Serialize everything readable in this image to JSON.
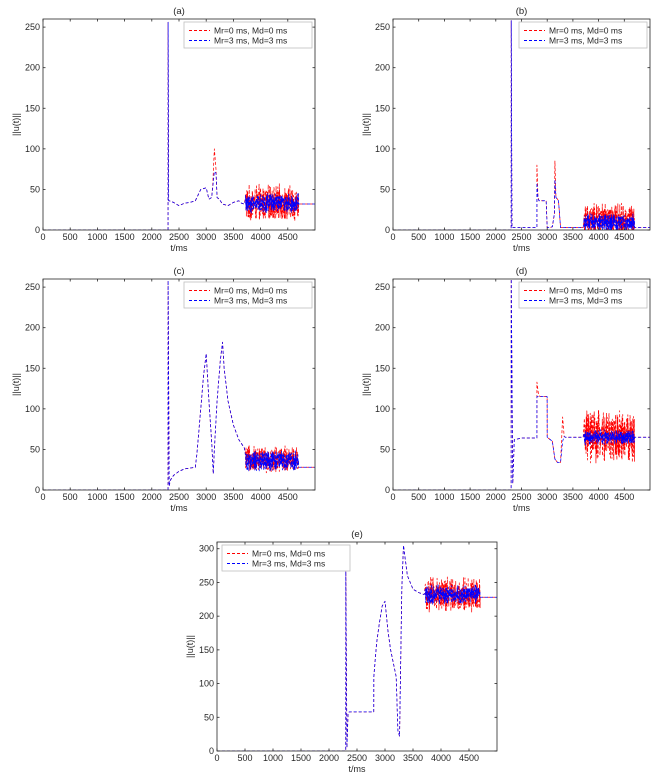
{
  "figure": {
    "panels": [
      "a",
      "b",
      "c",
      "d",
      "e"
    ],
    "colors": {
      "series_1": "#ff0000",
      "series_2": "#0000ff",
      "axes": "#262626",
      "legend_edge": "#bfbfbf"
    }
  },
  "chart_data": [
    {
      "id": "a",
      "type": "line",
      "title": "(a)",
      "xlabel": "t/ms",
      "ylabel": "||u(t)||",
      "xlim": [
        0,
        5000
      ],
      "ylim": [
        0,
        260
      ],
      "xticks": [
        0,
        500,
        1000,
        1500,
        2000,
        2500,
        3000,
        3500,
        4000,
        4500
      ],
      "yticks": [
        0,
        50,
        100,
        150,
        200,
        250
      ],
      "legend": {
        "location": "top-right",
        "entries": [
          "Mr=0 ms, Md=0 ms",
          "Mr=3 ms, Md=3 ms"
        ]
      },
      "series": [
        {
          "name": "Mr=0 ms, Md=0 ms",
          "color": "#ff0000",
          "style": "dashed",
          "x": [
            0,
            2299,
            2300,
            2310,
            2320,
            2400,
            2500,
            2600,
            2700,
            2800,
            2900,
            3000,
            3050,
            3100,
            3120,
            3150,
            3180,
            3200,
            3240,
            3260,
            3300,
            3400,
            3500,
            3600,
            3650,
            3700
          ],
          "y": [
            0,
            0,
            256,
            36,
            36,
            34,
            30,
            33,
            34,
            36,
            50,
            52,
            38,
            40,
            55,
            100,
            75,
            40,
            38,
            36,
            32,
            30,
            34,
            36,
            33,
            32
          ],
          "noise": {
            "from": 3720,
            "to": 4700,
            "mean": 33,
            "amp": 24
          },
          "tail": {
            "x": [
              4700,
              5000
            ],
            "y": [
              32,
              32
            ]
          }
        },
        {
          "name": "Mr=3 ms, Md=3 ms",
          "color": "#0000ff",
          "style": "dashed",
          "x": [
            0,
            2299,
            2300,
            2310,
            2320,
            2400,
            2500,
            2600,
            2700,
            2800,
            2900,
            3000,
            3050,
            3100,
            3120,
            3150,
            3180,
            3200,
            3240,
            3260,
            3300,
            3400,
            3500,
            3600,
            3650,
            3700
          ],
          "y": [
            0,
            0,
            256,
            36,
            36,
            34,
            30,
            33,
            34,
            36,
            50,
            52,
            38,
            40,
            52,
            72,
            70,
            40,
            38,
            36,
            32,
            30,
            34,
            36,
            33,
            32
          ],
          "noise": {
            "from": 3720,
            "to": 4700,
            "mean": 33,
            "amp": 13
          },
          "tail": {
            "x": [
              4700,
              5000
            ],
            "y": [
              32,
              32
            ]
          }
        }
      ]
    },
    {
      "id": "b",
      "type": "line",
      "title": "(b)",
      "xlabel": "t/ms",
      "ylabel": "||u(t)||",
      "xlim": [
        0,
        5000
      ],
      "ylim": [
        0,
        260
      ],
      "xticks": [
        0,
        500,
        1000,
        1500,
        2000,
        2500,
        3000,
        3500,
        4000,
        4500
      ],
      "yticks": [
        0,
        50,
        100,
        150,
        200,
        250
      ],
      "legend": {
        "location": "top-right",
        "entries": [
          "Mr=0 ms, Md=0 ms",
          "Mr=3 ms, Md=3 ms"
        ]
      },
      "series": [
        {
          "name": "Mr=0 ms, Md=0 ms",
          "color": "#ff0000",
          "style": "dashed",
          "x": [
            0,
            2299,
            2300,
            2315,
            2330,
            2500,
            2700,
            2799,
            2800,
            2820,
            2840,
            2900,
            2980,
            3000,
            3050,
            3100,
            3140,
            3150,
            3170,
            3200,
            3220,
            3260,
            3300,
            3400,
            3500,
            3600,
            3700
          ],
          "y": [
            0,
            0,
            258,
            3,
            3,
            3,
            3,
            3,
            80,
            40,
            36,
            36,
            36,
            3,
            3,
            4,
            20,
            85,
            40,
            38,
            36,
            3,
            3,
            3,
            3,
            3,
            3
          ],
          "noise": {
            "from": 3720,
            "to": 4700,
            "mean": 12,
            "amp": 22
          },
          "tail": {
            "x": [
              4700,
              5000
            ],
            "y": [
              3,
              3
            ]
          }
        },
        {
          "name": "Mr=3 ms, Md=3 ms",
          "color": "#0000ff",
          "style": "dashed",
          "x": [
            0,
            2299,
            2300,
            2315,
            2330,
            2500,
            2700,
            2799,
            2800,
            2820,
            2840,
            2900,
            2980,
            3000,
            3050,
            3100,
            3140,
            3150,
            3170,
            3200,
            3220,
            3260,
            3300,
            3400,
            3500,
            3600,
            3700
          ],
          "y": [
            0,
            0,
            258,
            3,
            3,
            3,
            3,
            3,
            58,
            40,
            36,
            36,
            36,
            3,
            3,
            4,
            20,
            62,
            40,
            38,
            36,
            3,
            3,
            3,
            3,
            3,
            3
          ],
          "noise": {
            "from": 3720,
            "to": 4700,
            "mean": 9,
            "amp": 12
          },
          "tail": {
            "x": [
              4700,
              5000
            ],
            "y": [
              3,
              3
            ]
          }
        }
      ]
    },
    {
      "id": "c",
      "type": "line",
      "title": "(c)",
      "xlabel": "t/ms",
      "ylabel": "||u(t)||",
      "xlim": [
        0,
        5000
      ],
      "ylim": [
        0,
        260
      ],
      "xticks": [
        0,
        500,
        1000,
        1500,
        2000,
        2500,
        3000,
        3500,
        4000,
        4500
      ],
      "yticks": [
        0,
        50,
        100,
        150,
        200,
        250
      ],
      "legend": {
        "location": "top-right",
        "entries": [
          "Mr=0 ms, Md=0 ms",
          "Mr=3 ms, Md=3 ms"
        ]
      },
      "series": [
        {
          "name": "Mr=0 ms, Md=0 ms",
          "color": "#ff0000",
          "style": "dashed",
          "x": [
            0,
            2299,
            2300,
            2320,
            2340,
            2400,
            2500,
            2600,
            2700,
            2800,
            2830,
            2900,
            2950,
            3000,
            3050,
            3100,
            3130,
            3150,
            3200,
            3260,
            3300,
            3330,
            3400,
            3500,
            3600,
            3700
          ],
          "y": [
            0,
            0,
            258,
            5,
            12,
            18,
            23,
            26,
            27,
            28,
            45,
            100,
            140,
            168,
            110,
            60,
            20,
            50,
            110,
            160,
            182,
            150,
            110,
            80,
            62,
            52
          ],
          "noise": {
            "from": 3720,
            "to": 4700,
            "mean": 38,
            "amp": 18
          },
          "tail": {
            "x": [
              4700,
              5000
            ],
            "y": [
              28,
              28
            ]
          }
        },
        {
          "name": "Mr=3 ms, Md=3 ms",
          "color": "#0000ff",
          "style": "dashed",
          "x": [
            0,
            2299,
            2300,
            2320,
            2340,
            2400,
            2500,
            2600,
            2700,
            2800,
            2830,
            2900,
            2950,
            3000,
            3050,
            3100,
            3130,
            3150,
            3200,
            3260,
            3300,
            3330,
            3400,
            3500,
            3600,
            3700
          ],
          "y": [
            0,
            0,
            258,
            5,
            12,
            18,
            23,
            26,
            27,
            28,
            45,
            100,
            140,
            168,
            110,
            60,
            20,
            50,
            110,
            160,
            182,
            150,
            110,
            80,
            62,
            52
          ],
          "noise": {
            "from": 3720,
            "to": 4700,
            "mean": 36,
            "amp": 14
          },
          "tail": {
            "x": [
              4700,
              5000
            ],
            "y": [
              28,
              28
            ]
          }
        }
      ]
    },
    {
      "id": "d",
      "type": "line",
      "title": "(d)",
      "xlabel": "t/ms",
      "ylabel": "||u(t)||",
      "xlim": [
        0,
        5000
      ],
      "ylim": [
        0,
        260
      ],
      "xticks": [
        0,
        500,
        1000,
        1500,
        2000,
        2500,
        3000,
        3500,
        4000,
        4500
      ],
      "yticks": [
        0,
        50,
        100,
        150,
        200,
        250
      ],
      "legend": {
        "location": "top-right",
        "entries": [
          "Mr=0 ms, Md=0 ms",
          "Mr=3 ms, Md=3 ms"
        ]
      },
      "series": [
        {
          "name": "Mr=0 ms, Md=0 ms",
          "color": "#ff0000",
          "style": "dashed",
          "x": [
            0,
            2299,
            2300,
            2330,
            2360,
            2500,
            2700,
            2799,
            2800,
            2830,
            2860,
            2950,
            2999,
            3000,
            3100,
            3150,
            3200,
            3260,
            3300,
            3330,
            3350,
            3400,
            3500,
            3600,
            3700
          ],
          "y": [
            0,
            0,
            266,
            8,
            62,
            64,
            64,
            64,
            133,
            118,
            115,
            115,
            115,
            65,
            60,
            38,
            34,
            34,
            90,
            66,
            65,
            65,
            65,
            65,
            65
          ],
          "noise": {
            "from": 3720,
            "to": 4700,
            "mean": 65,
            "amp": 36
          },
          "tail": {
            "x": [
              4700,
              5000
            ],
            "y": [
              65,
              65
            ]
          }
        },
        {
          "name": "Mr=3 ms, Md=3 ms",
          "color": "#0000ff",
          "style": "dashed",
          "x": [
            0,
            2299,
            2300,
            2330,
            2360,
            2500,
            2700,
            2799,
            2800,
            2830,
            2860,
            2950,
            2999,
            3000,
            3100,
            3150,
            3200,
            3260,
            3300,
            3330,
            3350,
            3400,
            3500,
            3600,
            3700
          ],
          "y": [
            0,
            0,
            266,
            8,
            62,
            64,
            64,
            64,
            115,
            115,
            115,
            115,
            115,
            65,
            60,
            38,
            34,
            34,
            60,
            66,
            65,
            65,
            65,
            65,
            65
          ],
          "noise": {
            "from": 3720,
            "to": 4700,
            "mean": 65,
            "amp": 10
          },
          "tail": {
            "x": [
              4700,
              5000
            ],
            "y": [
              65,
              65
            ]
          }
        }
      ]
    },
    {
      "id": "e",
      "type": "line",
      "title": "(e)",
      "xlabel": "t/ms",
      "ylabel": "||u(t)||",
      "xlim": [
        0,
        5000
      ],
      "ylim": [
        0,
        310
      ],
      "xticks": [
        0,
        500,
        1000,
        1500,
        2000,
        2500,
        3000,
        3500,
        4000,
        4500
      ],
      "yticks": [
        0,
        50,
        100,
        150,
        200,
        250,
        300
      ],
      "legend": {
        "location": "top-left",
        "entries": [
          "Mr=0 ms, Md=0 ms",
          "Mr=3 ms, Md=3 ms"
        ]
      },
      "series": [
        {
          "name": "Mr=0 ms, Md=0 ms",
          "color": "#ff0000",
          "style": "dashed",
          "x": [
            0,
            2299,
            2300,
            2320,
            2340,
            2360,
            2500,
            2700,
            2799,
            2800,
            2850,
            2900,
            2950,
            3000,
            3050,
            3100,
            3150,
            3200,
            3230,
            3260,
            3300,
            3330,
            3400,
            3500,
            3600,
            3700
          ],
          "y": [
            0,
            0,
            270,
            5,
            55,
            58,
            58,
            58,
            58,
            110,
            160,
            190,
            215,
            222,
            180,
            150,
            130,
            110,
            30,
            22,
            240,
            305,
            260,
            240,
            235,
            232
          ],
          "noise": {
            "from": 3720,
            "to": 4700,
            "mean": 232,
            "amp": 28
          },
          "tail": {
            "x": [
              4700,
              5000
            ],
            "y": [
              228,
              228
            ]
          }
        },
        {
          "name": "Mr=3 ms, Md=3 ms",
          "color": "#0000ff",
          "style": "dashed",
          "x": [
            0,
            2299,
            2300,
            2320,
            2340,
            2360,
            2500,
            2700,
            2799,
            2800,
            2850,
            2900,
            2950,
            3000,
            3050,
            3100,
            3150,
            3200,
            3230,
            3260,
            3300,
            3330,
            3400,
            3500,
            3600,
            3700
          ],
          "y": [
            0,
            0,
            270,
            5,
            55,
            58,
            58,
            58,
            58,
            110,
            160,
            190,
            215,
            222,
            180,
            150,
            130,
            110,
            30,
            22,
            240,
            305,
            260,
            240,
            235,
            232
          ],
          "noise": {
            "from": 3720,
            "to": 4700,
            "mean": 232,
            "amp": 16
          },
          "tail": {
            "x": [
              4700,
              5000
            ],
            "y": [
              228,
              228
            ]
          }
        }
      ]
    }
  ]
}
